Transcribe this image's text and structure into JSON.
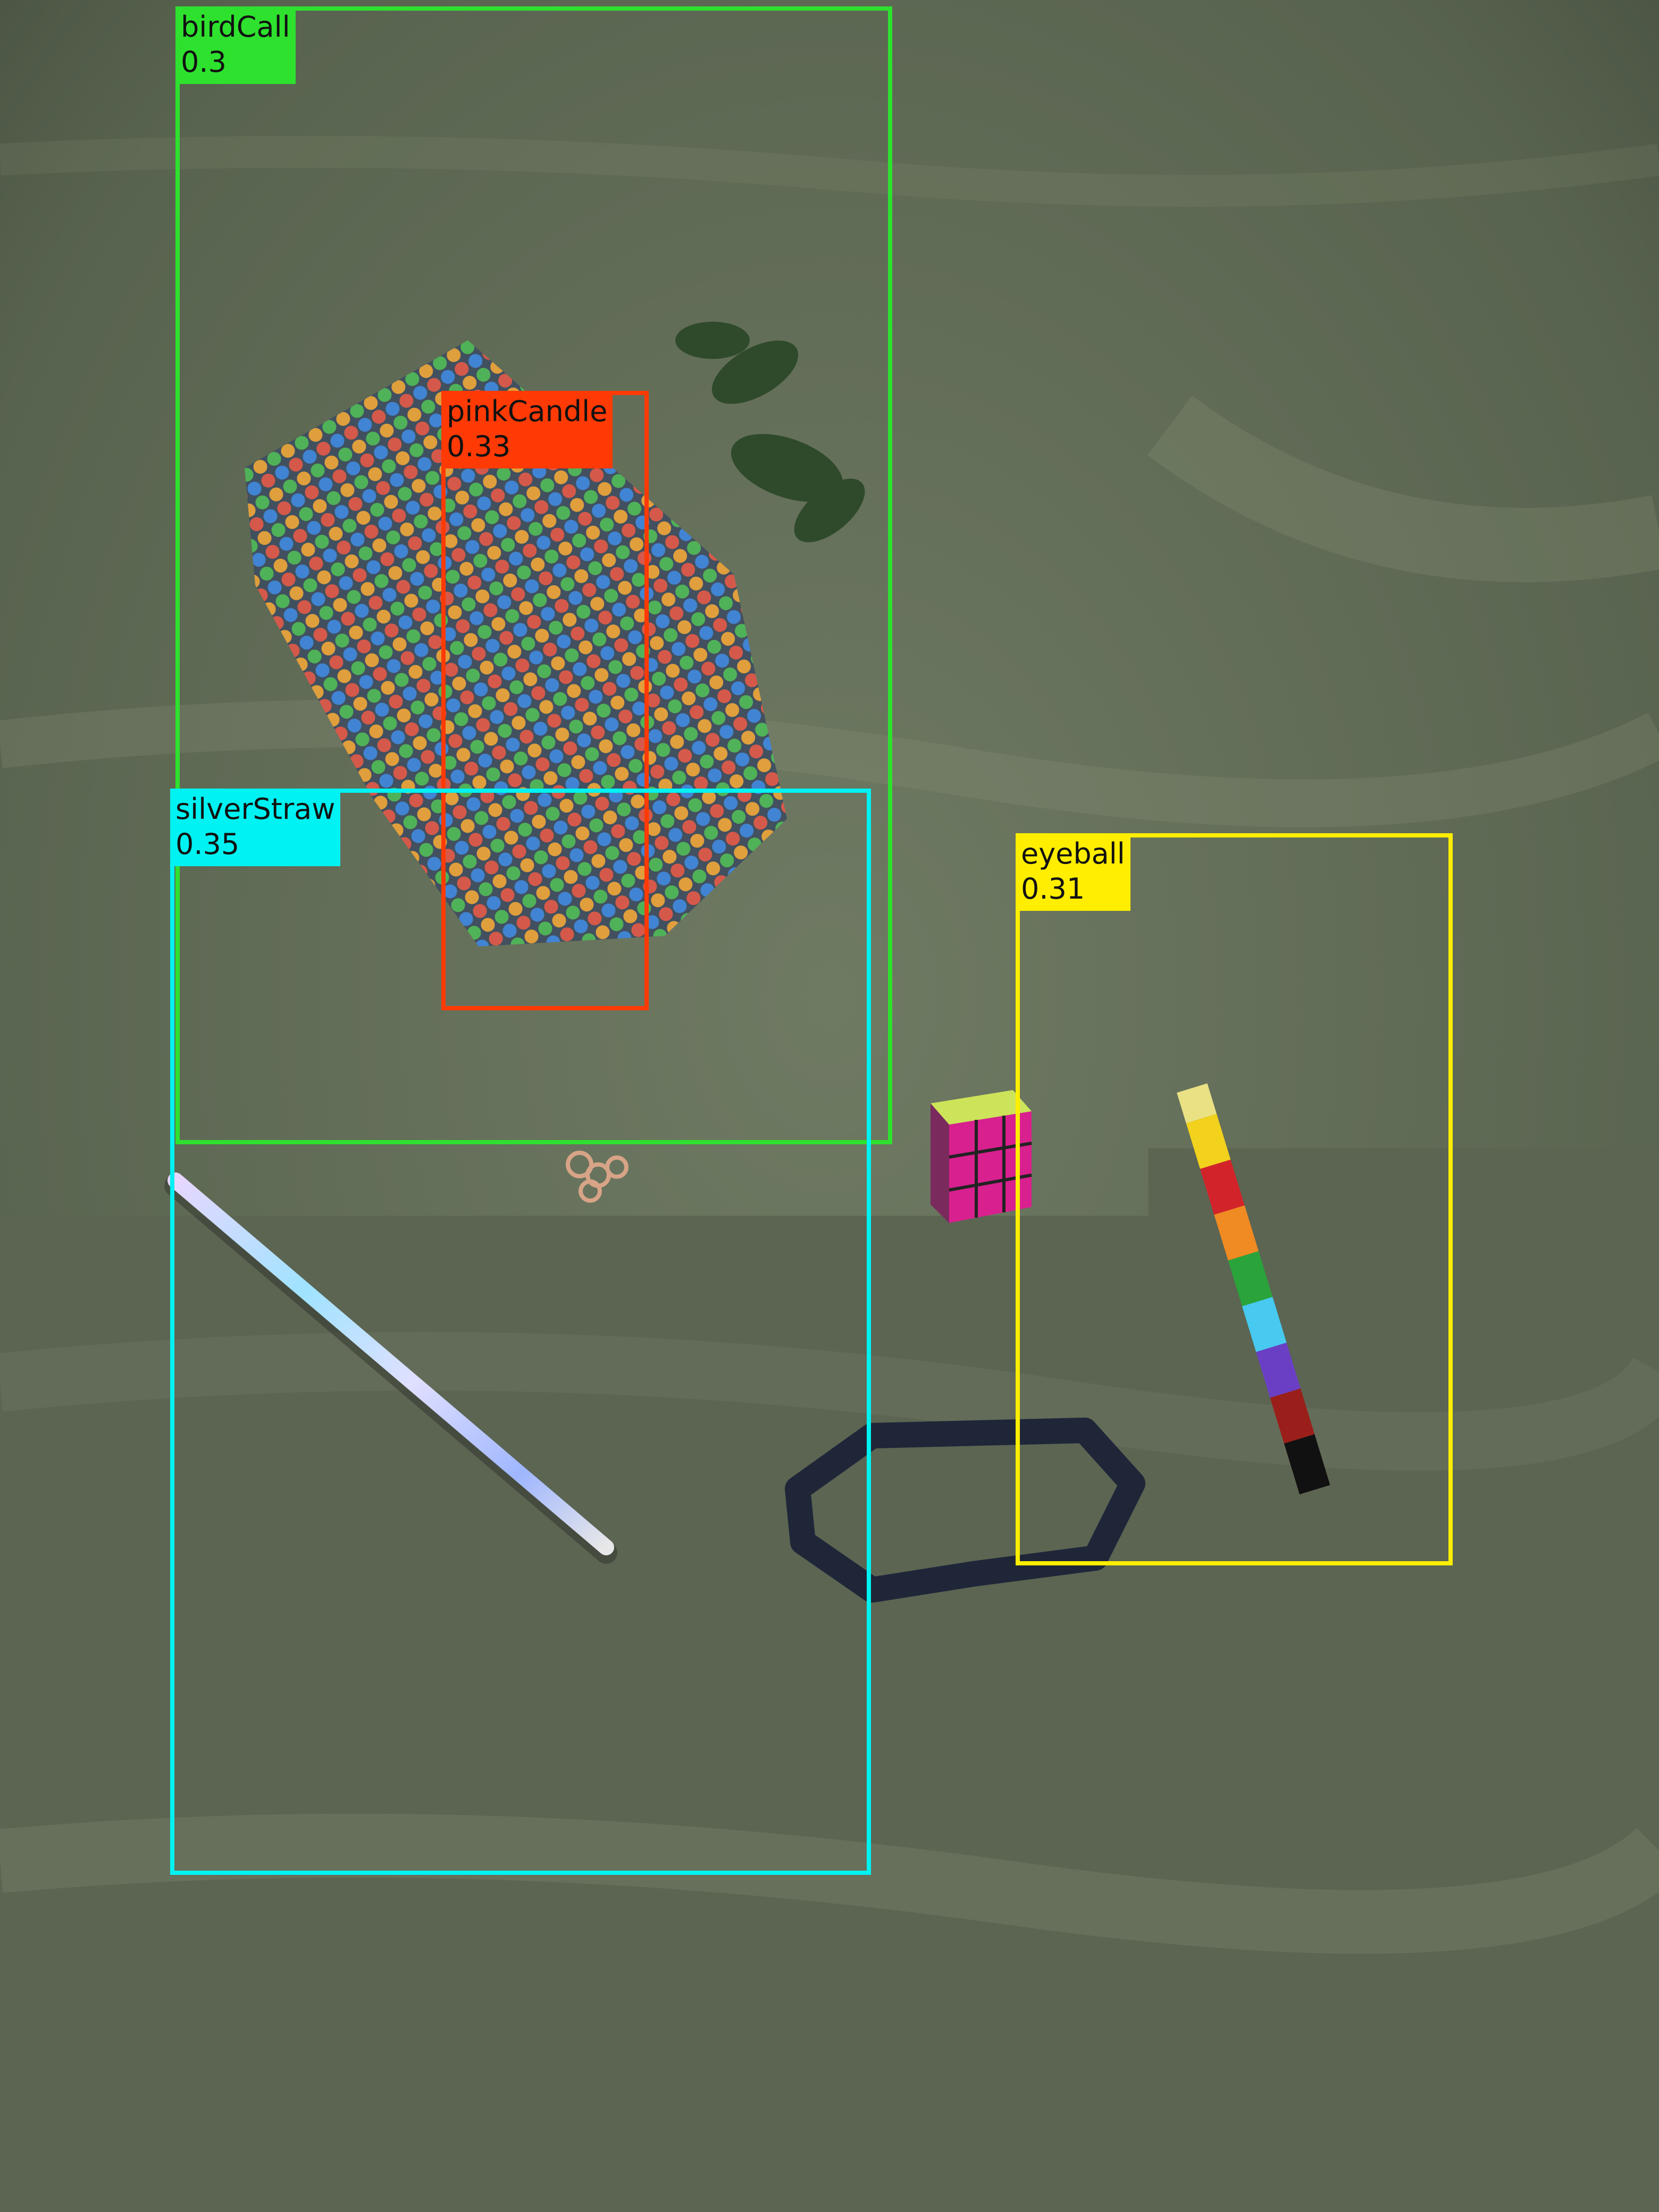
{
  "image": {
    "description_elements": [
      "grass-ground",
      "sequin-pouch",
      "rubiks-cube",
      "holographic-straw",
      "stacking-pencil",
      "black-bracelet",
      "rose-gold-chain"
    ]
  },
  "detections": [
    {
      "id": "birdcall",
      "label": "birdCall",
      "score": "0.3",
      "color": "#2ee12e"
    },
    {
      "id": "pinkcandle",
      "label": "pinkCandle",
      "score": "0.33",
      "color": "#ff3a05"
    },
    {
      "id": "silverstraw",
      "label": "silverStraw",
      "score": "0.35",
      "color": "#00f2f2"
    },
    {
      "id": "eyeball",
      "label": "eyeball",
      "score": "0.31",
      "color": "#ffee00"
    }
  ]
}
